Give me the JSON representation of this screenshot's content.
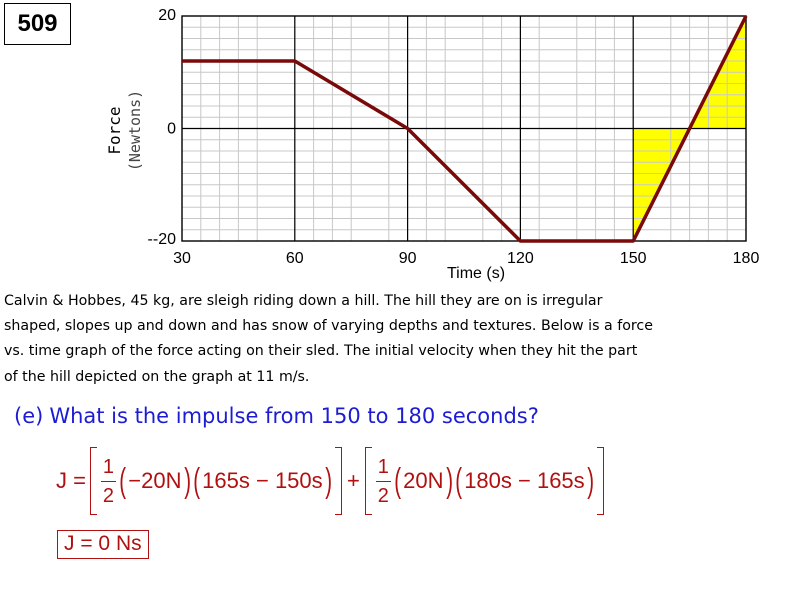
{
  "slide_number": "509",
  "chart_data": {
    "type": "line",
    "xlabel": "Time (s)",
    "ylabel": "Force",
    "ylabel_sub": "(Newtons)",
    "x_ticks": [
      30,
      60,
      90,
      120,
      150,
      180
    ],
    "x_tick_labels": [
      "30",
      "60",
      "90",
      "120",
      "150",
      "180"
    ],
    "y_ticks": [
      20,
      0,
      -20
    ],
    "y_tick_labels": [
      "20",
      "0",
      "--20"
    ],
    "xlim": [
      30,
      180
    ],
    "ylim": [
      -20,
      20
    ],
    "grid": true,
    "series": [
      {
        "x": [
          30,
          60,
          90,
          120,
          150,
          180
        ],
        "values": [
          12,
          12,
          0,
          -20,
          -20,
          20
        ],
        "color": "#7a0a0a"
      }
    ],
    "shaded_regions": [
      {
        "points": [
          [
            150,
            0
          ],
          [
            150,
            -20
          ],
          [
            165,
            0
          ]
        ],
        "color": "#ffff00"
      },
      {
        "points": [
          [
            165,
            0
          ],
          [
            180,
            20
          ],
          [
            180,
            0
          ]
        ],
        "color": "#ffff00"
      }
    ]
  },
  "problem": {
    "lines": [
      "Calvin & Hobbes, 45 kg, are sleigh riding down a hill. The hill they are on is irregular",
      "shaped, slopes up and down and has snow of varying depths and textures. Below is a force",
      "vs. time graph of the force acting on their sled. The initial velocity when they hit the part",
      "of the hill depicted on the graph at 11 m/s."
    ]
  },
  "question": {
    "label": "(e)",
    "text": "What is the impulse from 150 to 180 seconds?"
  },
  "equation": {
    "lhs": "J =",
    "frac_num": "1",
    "frac_den": "2",
    "term1_force": "−20N",
    "term1_time": "165s − 150s",
    "plus": "+",
    "term2_force": "20N",
    "term2_time": "180s − 165s"
  },
  "answer": "J = 0 Ns",
  "colors": {
    "line": "#7a0a0a",
    "shade": "#ffff00",
    "question": "#1c1cd4",
    "equation": "#b01010"
  }
}
